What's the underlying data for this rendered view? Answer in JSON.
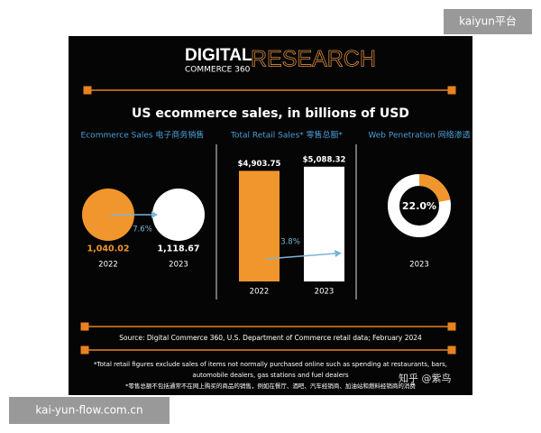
{
  "watermarks": {
    "top": "kaiyun平台",
    "bottom": "kai-yun-flow.com.cn",
    "zhihu": "知乎 @紫鸟"
  },
  "header": {
    "brand": "DIGITAL",
    "brand_sub": "COMMERCE 360",
    "brand_right": "RESEARCH"
  },
  "title": "US ecommerce sales, in billions of USD",
  "ecommerce": {
    "label": "Ecommerce Sales 电子商务销售",
    "years": [
      "2022",
      "2023"
    ],
    "values": [
      1040.02,
      1118.67
    ],
    "value_labels": [
      "1,040.02",
      "1,118.67"
    ],
    "growth": "7.6%"
  },
  "retail": {
    "label": "Total Retail Sales* 零售总额*",
    "years": [
      "2022",
      "2023"
    ],
    "values": [
      4903.75,
      5088.32
    ],
    "value_labels": [
      "$4,903.75",
      "$5,088.32"
    ],
    "growth": "3.8%"
  },
  "penetration": {
    "label": "Web Penetration 网络渗透",
    "year": "2023",
    "value": 22.0,
    "value_label": "22.0%"
  },
  "source": "Source: Digital Commerce 360, U.S. Department of Commerce retail data; February 2024",
  "footnotes": [
    "*Total retail figures exclude sales of items not normally purchased online such as spending at restaurants, bars,",
    "automobile dealers, gas stations and fuel dealers",
    "*零售总额不包括通常不在网上购买的商品的销售，例如在餐厅、酒吧、汽车经销商、加油站和燃料经销商的消费"
  ]
}
